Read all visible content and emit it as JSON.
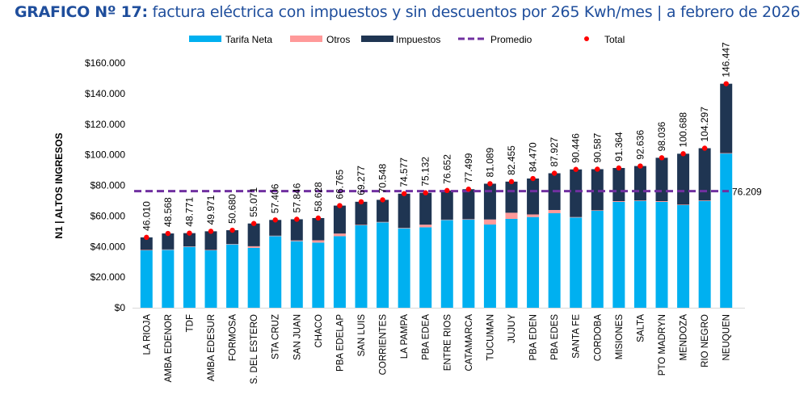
{
  "header": {
    "title_bold": "GRAFICO Nº 17:",
    "title_rest": " factura eléctrica con impuestos y sin descuentos por 265 Kwh/mes | a febrero de 2026"
  },
  "colors": {
    "tarifa_neta": "#00b0f0",
    "otros": "#ff9999",
    "impuestos": "#1f3552",
    "promedio": "#7030a0",
    "total": "#ff0000",
    "title": "#1f4e9c"
  },
  "chart_data": {
    "type": "bar",
    "stacked": true,
    "title": "GRAFICO Nº 17: factura eléctrica con impuestos y sin descuentos por 265 Kwh/mes | a febrero de 2026",
    "xlabel": "",
    "ylabel": "N1 | ALTOS INGRESOS",
    "ylim": [
      0,
      160000
    ],
    "y_ticks": [
      0,
      20000,
      40000,
      60000,
      80000,
      100000,
      120000,
      140000,
      160000
    ],
    "y_tick_labels": [
      "$0",
      "$20.000",
      "$40.000",
      "$60.000",
      "$80.000",
      "$100.000",
      "$120.000",
      "$140.000",
      "$160.000"
    ],
    "grid": false,
    "legend_position": "top",
    "legend": [
      "Tarifa Neta",
      "Otros",
      "Impuestos",
      "Promedio",
      "Total"
    ],
    "categories": [
      "LA RIOJA",
      "AMBA EDENOR",
      "TDF",
      "AMBA EDESUR",
      "FORMOSA",
      "S. DEL ESTERO",
      "STA CRUZ",
      "SAN JUAN",
      "CHACO",
      "PBA EDELAP",
      "SAN LUIS",
      "CORRIENTES",
      "LA PAMPA",
      "PBA EDEA",
      "ENTRE RIOS",
      "CATAMARCA",
      "TUCUMAN",
      "JUJUY",
      "PBA EDEN",
      "PBA EDES",
      "SANTA FE",
      "CORDOBA",
      "MISIONES",
      "SALTA",
      "PTO MADRYN",
      "MENDOZA",
      "RIO NEGRO",
      "NEUQUEN"
    ],
    "series": [
      {
        "name": "Tarifa Neta",
        "values": [
          37500,
          37800,
          39800,
          37500,
          41400,
          39200,
          46800,
          43500,
          42600,
          46800,
          53900,
          55800,
          51900,
          52600,
          57300,
          57600,
          54400,
          58100,
          59300,
          61800,
          59000,
          63400,
          69200,
          69800,
          69200,
          67100,
          69800,
          100800
        ]
      },
      {
        "name": "Otros",
        "values": [
          300,
          300,
          300,
          300,
          300,
          1000,
          300,
          500,
          1500,
          1700,
          300,
          300,
          300,
          1700,
          300,
          300,
          3300,
          4000,
          1700,
          2100,
          300,
          300,
          500,
          300,
          500,
          300,
          300,
          300
        ]
      },
      {
        "name": "Impuestos",
        "values": [
          8210,
          10468,
          8671,
          12171,
          8980,
          14871,
          10306,
          13846,
          14528,
          18265,
          15077,
          14448,
          22377,
          20832,
          19052,
          19599,
          23389,
          20355,
          23470,
          24027,
          31146,
          26887,
          21664,
          22536,
          28336,
          33288,
          34197,
          45347
        ]
      },
      {
        "name": "Total",
        "values": [
          46010,
          48568,
          48771,
          49971,
          50680,
          55071,
          57406,
          57846,
          58628,
          66765,
          69277,
          70548,
          74577,
          75132,
          76652,
          77499,
          81089,
          82455,
          84470,
          87927,
          90446,
          90587,
          91364,
          92636,
          98036,
          100688,
          104297,
          146447
        ]
      }
    ],
    "data_labels": [
      "46.010",
      "48.568",
      "48.771",
      "49.971",
      "50.680",
      "55.071",
      "57.406",
      "57.846",
      "58.628",
      "66.765",
      "69.277",
      "70.548",
      "74.577",
      "75.132",
      "76.652",
      "77.499",
      "81.089",
      "82.455",
      "84.470",
      "87.927",
      "90.446",
      "90.587",
      "91.364",
      "92.636",
      "98.036",
      "100.688",
      "104.297",
      "146.447"
    ],
    "promedio": {
      "value": 76209,
      "label": "76.209"
    }
  }
}
